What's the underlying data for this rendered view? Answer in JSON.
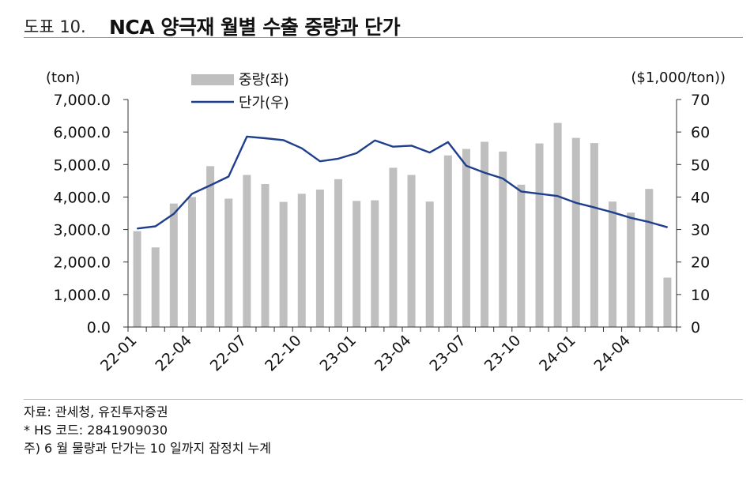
{
  "header": {
    "figure_number": "도표 10.",
    "figure_title": "NCA 양극재 월별 수출 중량과 단가"
  },
  "chart_data": {
    "type": "bar+line",
    "title": "NCA 양극재 월별 수출 중량과 단가",
    "categories": [
      "22-01",
      "22-02",
      "22-03",
      "22-04",
      "22-05",
      "22-06",
      "22-07",
      "22-08",
      "22-09",
      "22-10",
      "22-11",
      "22-12",
      "23-01",
      "23-02",
      "23-03",
      "23-04",
      "23-05",
      "23-06",
      "23-07",
      "23-08",
      "23-09",
      "23-10",
      "23-11",
      "23-12",
      "24-01",
      "24-02",
      "24-03",
      "24-04",
      "24-05",
      "24-06"
    ],
    "tick_labels": [
      "22-01",
      "22-04",
      "22-07",
      "22-10",
      "23-01",
      "23-04",
      "23-07",
      "23-10",
      "24-01",
      "24-04"
    ],
    "left_axis": {
      "unit_label": "(ton)",
      "ylim": [
        0,
        7000
      ],
      "ticks": [
        "0.0",
        "1,000.0",
        "2,000.0",
        "3,000.0",
        "4,000.0",
        "5,000.0",
        "6,000.0",
        "7,000.0"
      ]
    },
    "right_axis": {
      "unit_label": "($1,000/ton))",
      "ylim": [
        0,
        70
      ],
      "ticks": [
        "0",
        "10",
        "20",
        "30",
        "40",
        "50",
        "60",
        "70"
      ]
    },
    "series": [
      {
        "name": "중량(좌)",
        "type": "bar",
        "axis": "left",
        "color": "#bfbfbf",
        "values": [
          2950,
          2450,
          3800,
          4000,
          4950,
          3950,
          4680,
          4400,
          3850,
          4100,
          4230,
          4550,
          3880,
          3900,
          4900,
          4680,
          3860,
          5280,
          5480,
          5700,
          5400,
          4380,
          5650,
          6280,
          5820,
          5660,
          3860,
          3520,
          4250,
          1520
        ]
      },
      {
        "name": "단가(우)",
        "type": "line",
        "axis": "right",
        "color": "#1f3f8c",
        "values": [
          30.3,
          31.0,
          34.8,
          41.0,
          43.6,
          46.3,
          58.6,
          58.1,
          57.5,
          55.0,
          51.0,
          51.8,
          53.5,
          57.4,
          55.5,
          55.8,
          53.7,
          56.9,
          49.6,
          47.5,
          45.7,
          41.7,
          41.0,
          40.3,
          38.2,
          36.8,
          35.3,
          33.6,
          32.3,
          30.7
        ]
      }
    ],
    "legend": "top-center"
  },
  "notes": {
    "source": "자료: 관세청, 유진투자증권",
    "hs_code": "* HS 코드: 2841909030",
    "footnote": "주) 6 월 물량과 단가는 10 일까지 잠정치 누계"
  }
}
